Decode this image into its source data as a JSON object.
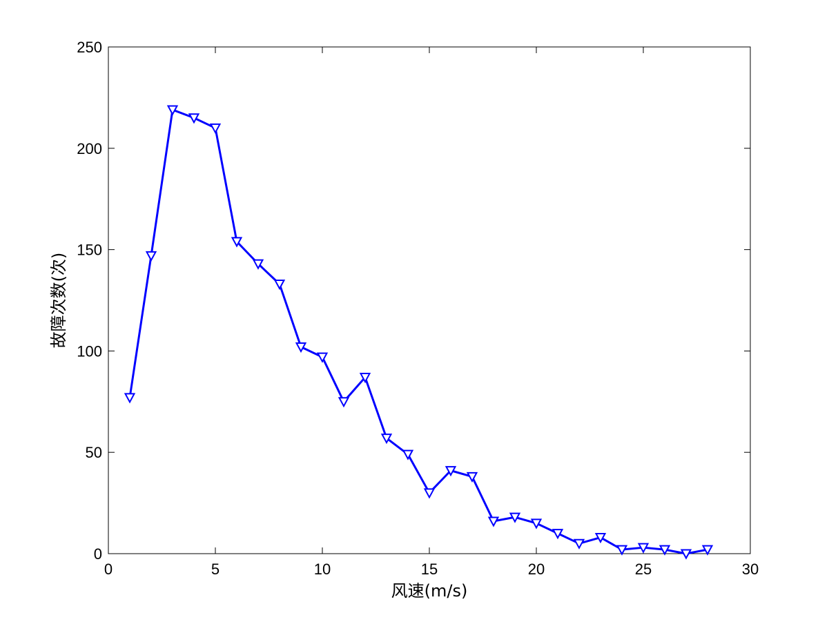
{
  "chart_data": {
    "type": "line",
    "title": "",
    "xlabel": "风速(m/s)",
    "ylabel": "故障次数(次)",
    "xlim": [
      0,
      30
    ],
    "ylim": [
      0,
      250
    ],
    "xticks": [
      0,
      5,
      10,
      15,
      20,
      25,
      30
    ],
    "yticks": [
      0,
      50,
      100,
      150,
      200,
      250
    ],
    "grid": false,
    "legend": "none",
    "marker": "down-triangle",
    "series": [
      {
        "color": "#0000ff",
        "x": [
          1,
          2,
          3,
          4,
          5,
          6,
          7,
          8,
          9,
          10,
          11,
          12,
          13,
          14,
          15,
          16,
          17,
          18,
          19,
          20,
          21,
          22,
          23,
          24,
          25,
          26,
          27,
          28
        ],
        "y": [
          77,
          147,
          219,
          215,
          210,
          154,
          143,
          133,
          102,
          97,
          75,
          87,
          57,
          49,
          30,
          41,
          38,
          16,
          18,
          15,
          10,
          5,
          8,
          2,
          3,
          2,
          0,
          2
        ]
      }
    ]
  }
}
